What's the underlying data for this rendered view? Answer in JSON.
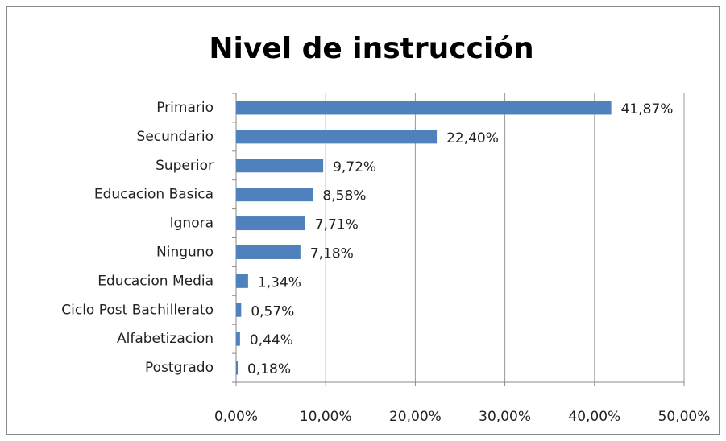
{
  "chart_data": {
    "type": "barh",
    "title": "Nivel de instrucción",
    "categories": [
      "Primario",
      "Secundario",
      "Superior",
      "Educacion Basica",
      "Ignora",
      "Ninguno",
      "Educacion Media",
      "Ciclo Post Bachillerato",
      "Alfabetizacion",
      "Postgrado"
    ],
    "values": [
      41.87,
      22.4,
      9.72,
      8.58,
      7.71,
      7.18,
      1.34,
      0.57,
      0.44,
      0.18
    ],
    "value_labels": [
      "41,87%",
      "22,40%",
      "9,72%",
      "8,58%",
      "7,71%",
      "7,18%",
      "1,34%",
      "0,57%",
      "0,44%",
      "0,18%"
    ],
    "color": "#4f81bd",
    "xlim": [
      0,
      50
    ],
    "xticks": [
      {
        "value": 0,
        "label": "0,00%"
      },
      {
        "value": 10,
        "label": "10,00%"
      },
      {
        "value": 20,
        "label": "20,00%"
      },
      {
        "value": 30,
        "label": "30,00%"
      },
      {
        "value": 40,
        "label": "40,00%"
      },
      {
        "value": 50,
        "label": "50,00%"
      }
    ],
    "grid": true
  }
}
